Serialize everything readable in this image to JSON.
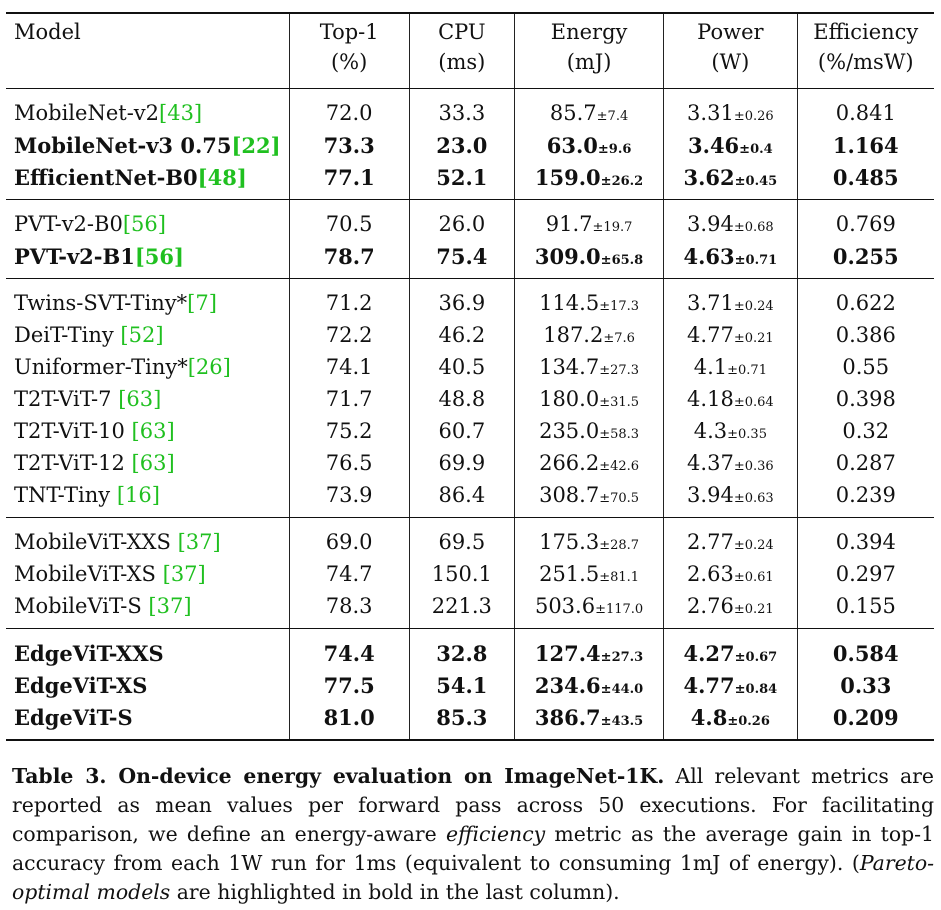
{
  "table": {
    "headers": [
      {
        "line1": "Model",
        "line2": ""
      },
      {
        "line1": "Top-1",
        "line2": "(%)"
      },
      {
        "line1": "CPU",
        "line2": "(ms)"
      },
      {
        "line1": "Energy",
        "line2": "(mJ)"
      },
      {
        "line1": "Power",
        "line2": "(W)"
      },
      {
        "line1": "Efficiency",
        "line2": "(%/msW)"
      }
    ],
    "groups": [
      [
        {
          "name": "MobileNet-v2",
          "ref": "[43]",
          "top1": "72.0",
          "cpu": "33.3",
          "energy": "85.7",
          "energy_pm": "±7.4",
          "power": "3.31",
          "power_pm": "±0.26",
          "eff": "0.841",
          "bold": false
        },
        {
          "name": "MobileNet-v3 0.75",
          "ref": "[22]",
          "top1": "73.3",
          "cpu": "23.0",
          "energy": "63.0",
          "energy_pm": "±9.6",
          "power": "3.46",
          "power_pm": "±0.4",
          "eff": "1.164",
          "bold": true
        },
        {
          "name": "EfficientNet-B0",
          "ref": "[48]",
          "top1": "77.1",
          "cpu": "52.1",
          "energy": "159.0",
          "energy_pm": "±26.2",
          "power": "3.62",
          "power_pm": "±0.45",
          "eff": "0.485",
          "bold": true
        }
      ],
      [
        {
          "name": "PVT-v2-B0",
          "ref": "[56]",
          "top1": "70.5",
          "cpu": "26.0",
          "energy": "91.7",
          "energy_pm": "±19.7",
          "power": "3.94",
          "power_pm": "±0.68",
          "eff": "0.769",
          "bold": false
        },
        {
          "name": "PVT-v2-B1",
          "ref": "[56]",
          "top1": "78.7",
          "cpu": "75.4",
          "energy": "309.0",
          "energy_pm": "±65.8",
          "power": "4.63",
          "power_pm": "±0.71",
          "eff": "0.255",
          "bold": true
        }
      ],
      [
        {
          "name": "Twins-SVT-Tiny*",
          "ref": "[7]",
          "top1": "71.2",
          "cpu": "36.9",
          "energy": "114.5",
          "energy_pm": "±17.3",
          "power": "3.71",
          "power_pm": "±0.24",
          "eff": "0.622",
          "bold": false
        },
        {
          "name": "DeiT-Tiny ",
          "ref": "[52]",
          "top1": "72.2",
          "cpu": "46.2",
          "energy": "187.2",
          "energy_pm": "±7.6",
          "power": "4.77",
          "power_pm": "±0.21",
          "eff": "0.386",
          "bold": false
        },
        {
          "name": "Uniformer-Tiny*",
          "ref": "[26]",
          "top1": "74.1",
          "cpu": "40.5",
          "energy": "134.7",
          "energy_pm": "±27.3",
          "power": "4.1",
          "power_pm": "±0.71",
          "eff": "0.55",
          "bold": false
        },
        {
          "name": "T2T-ViT-7 ",
          "ref": "[63]",
          "top1": "71.7",
          "cpu": "48.8",
          "energy": "180.0",
          "energy_pm": "±31.5",
          "power": "4.18",
          "power_pm": "±0.64",
          "eff": "0.398",
          "bold": false
        },
        {
          "name": "T2T-ViT-10 ",
          "ref": "[63]",
          "top1": "75.2",
          "cpu": "60.7",
          "energy": "235.0",
          "energy_pm": "±58.3",
          "power": "4.3",
          "power_pm": "±0.35",
          "eff": "0.32",
          "bold": false
        },
        {
          "name": "T2T-ViT-12 ",
          "ref": "[63]",
          "top1": "76.5",
          "cpu": "69.9",
          "energy": "266.2",
          "energy_pm": "±42.6",
          "power": "4.37",
          "power_pm": "±0.36",
          "eff": "0.287",
          "bold": false
        },
        {
          "name": "TNT-Tiny ",
          "ref": "[16]",
          "top1": "73.9",
          "cpu": "86.4",
          "energy": "308.7",
          "energy_pm": "±70.5",
          "power": "3.94",
          "power_pm": "±0.63",
          "eff": "0.239",
          "bold": false
        }
      ],
      [
        {
          "name": "MobileViT-XXS ",
          "ref": "[37]",
          "top1": "69.0",
          "cpu": "69.5",
          "energy": "175.3",
          "energy_pm": "±28.7",
          "power": "2.77",
          "power_pm": "±0.24",
          "eff": "0.394",
          "bold": false
        },
        {
          "name": "MobileViT-XS ",
          "ref": "[37]",
          "top1": "74.7",
          "cpu": "150.1",
          "energy": "251.5",
          "energy_pm": "±81.1",
          "power": "2.63",
          "power_pm": "±0.61",
          "eff": "0.297",
          "bold": false
        },
        {
          "name": "MobileViT-S ",
          "ref": "[37]",
          "top1": "78.3",
          "cpu": "221.3",
          "energy": "503.6",
          "energy_pm": "±117.0",
          "power": "2.76",
          "power_pm": "±0.21",
          "eff": "0.155",
          "bold": false
        }
      ],
      [
        {
          "name": "EdgeViT-XXS",
          "ref": "",
          "top1": "74.4",
          "cpu": "32.8",
          "energy": "127.4",
          "energy_pm": "±27.3",
          "power": "4.27",
          "power_pm": "±0.67",
          "eff": "0.584",
          "bold": true
        },
        {
          "name": "EdgeViT-XS",
          "ref": "",
          "top1": "77.5",
          "cpu": "54.1",
          "energy": "234.6",
          "energy_pm": "±44.0",
          "power": "4.77",
          "power_pm": "±0.84",
          "eff": "0.33",
          "bold": true
        },
        {
          "name": "EdgeViT-S",
          "ref": "",
          "top1": "81.0",
          "cpu": "85.3",
          "energy": "386.7",
          "energy_pm": "±43.5",
          "power": "4.8",
          "power_pm": "±0.26",
          "eff": "0.209",
          "bold": true
        }
      ]
    ]
  },
  "caption": {
    "label": "Table 3. On-device energy evaluation on ImageNet-1K.",
    "text_a": " All relevant metrics are reported as mean values per forward pass across 50 executions. For facilitating comparison, we define an energy-aware ",
    "emph_a": "efficiency",
    "text_b": " metric as the average gain in top-1 accuracy from each 1W run for 1ms (equivalent to consuming 1mJ of energy). (",
    "emph_b": "Pareto-optimal models",
    "text_c": " are highlighted in bold in the last column)."
  }
}
